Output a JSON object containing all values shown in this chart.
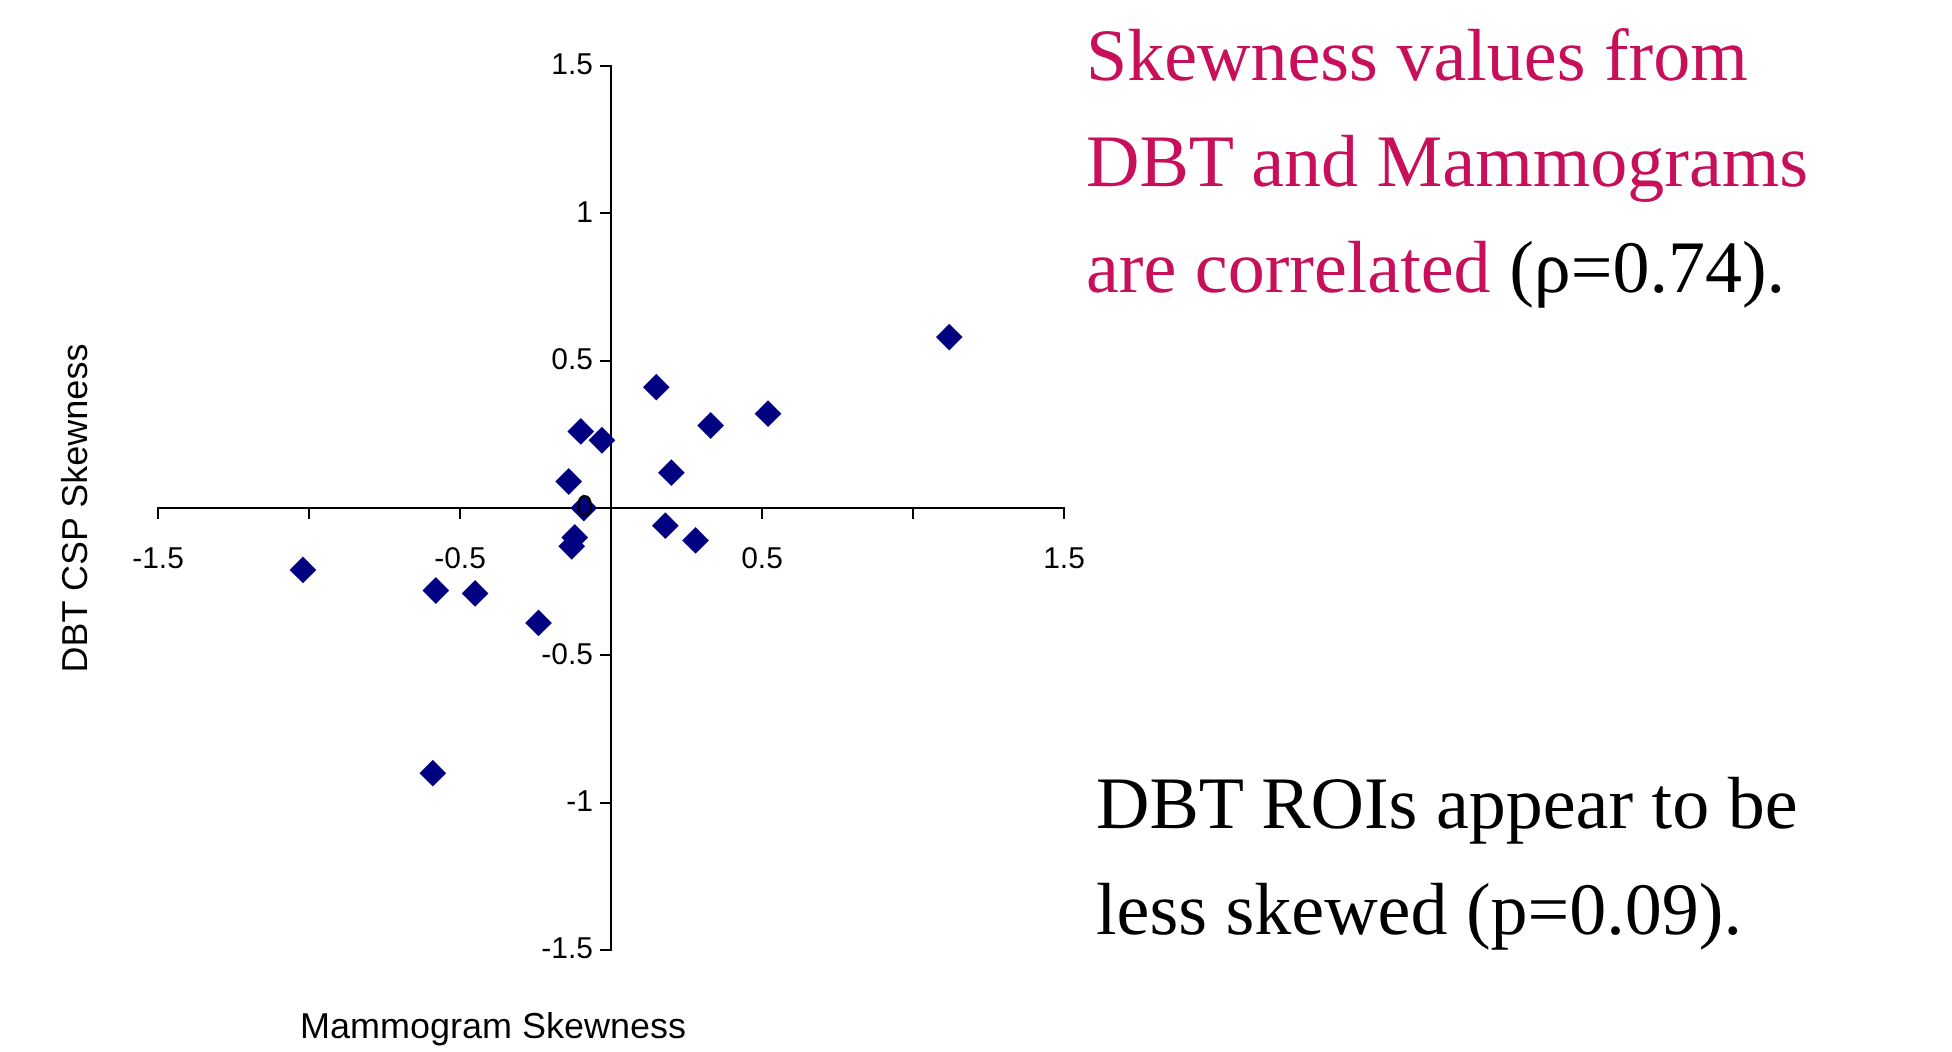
{
  "chart_data": {
    "type": "scatter",
    "xlabel": "Mammogram Skewness",
    "ylabel": "DBT CSP Skewness",
    "x": [
      1.12,
      0.52,
      0.33,
      0.15,
      -0.1,
      -0.03,
      -0.14,
      0.2,
      -0.09,
      0.18,
      0.28,
      -0.12,
      -0.13,
      -1.02,
      -0.58,
      -0.45,
      -0.24,
      -0.59
    ],
    "series": [
      {
        "color": "#000080",
        "values": [
          0.58,
          0.32,
          0.28,
          0.41,
          0.26,
          0.23,
          0.09,
          0.12,
          0.0,
          -0.06,
          -0.11,
          -0.1,
          -0.13,
          -0.21,
          -0.28,
          -0.29,
          -0.39,
          -0.9
        ]
      }
    ],
    "xlim": [
      -1.5,
      1.5
    ],
    "ylim": [
      -1.5,
      1.5
    ],
    "xticks": [
      -1.5,
      {
        "value": -1,
        "label": null
      },
      -0.5,
      {
        "value": 0,
        "label": null
      },
      0.5,
      {
        "value": 1,
        "label": null
      },
      1.5
    ],
    "yticks": [
      -1.5,
      -1,
      -0.5,
      0,
      0.5,
      1,
      1.5
    ],
    "marker": "diamond",
    "grid": false,
    "legend": false,
    "annotations": [
      "Skewness values from DBT and Mammograms are correlated",
      "(ρ=0.74).",
      "DBT ROIs appear to be less skewed (p=0.09)."
    ]
  }
}
